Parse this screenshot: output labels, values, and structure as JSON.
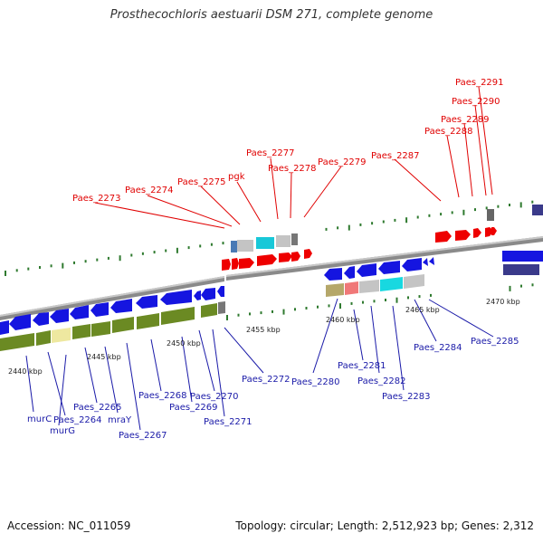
{
  "title": "Prosthecochloris aestuarii DSM 271, complete genome",
  "footer": {
    "accession": "Accession: NC_011059",
    "summary": "Topology: circular; Length: 2,512,923 bp; Genes: 2,312"
  },
  "colors": {
    "forward_gene": "#ee0000",
    "reverse_gene": "#1515e0",
    "backbone": "#8c8c8c",
    "tick_mark": "#2f7a2f",
    "cds_track": "#6b8a23",
    "label_red": "#e00000",
    "label_blue": "#1a1aa8"
  },
  "scale_ticks": [
    "2440 kbp",
    "2445 kbp",
    "2450 kbp",
    "2455 kbp",
    "2460 kbp",
    "2465 kbp",
    "2470 kbp"
  ],
  "forward_labels": [
    "Paes_2273",
    "Paes_2274",
    "Paes_2275",
    "pgk",
    "Paes_2277",
    "Paes_2278",
    "Paes_2279",
    "Paes_2287",
    "Paes_2288",
    "Paes_2289",
    "Paes_2290",
    "Paes_2291"
  ],
  "reverse_labels": [
    "murC",
    "Paes_2264",
    "murG",
    "Paes_2265",
    "mraY",
    "Paes_2267",
    "Paes_2268",
    "Paes_2269",
    "Paes_2270",
    "Paes_2271",
    "Paes_2272",
    "Paes_2280",
    "Paes_2281",
    "Paes_2282",
    "Paes_2283",
    "Paes_2284",
    "Paes_2285"
  ]
}
